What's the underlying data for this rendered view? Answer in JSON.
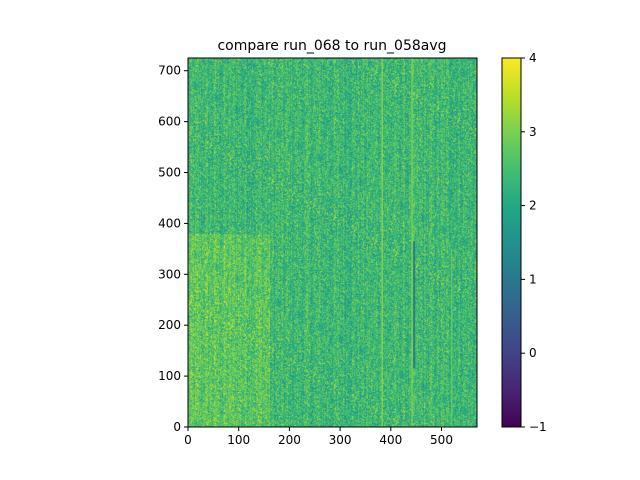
{
  "chart_data": {
    "type": "heatmap",
    "title": "compare run_068 to run_058avg",
    "xlabel": "",
    "ylabel": "",
    "xlim": [
      0,
      570
    ],
    "ylim": [
      0,
      725
    ],
    "x_ticks": [
      0,
      100,
      200,
      300,
      400,
      500
    ],
    "y_ticks": [
      0,
      100,
      200,
      300,
      400,
      500,
      600,
      700
    ],
    "colorbar": {
      "min": -1,
      "max": 4,
      "ticks": [
        -1,
        0,
        1,
        2,
        3,
        4
      ],
      "tick_labels": [
        "−1",
        "0",
        "1",
        "2",
        "3",
        "4"
      ],
      "colormap": "viridis"
    },
    "value_distribution": {
      "typical_range": [
        1.6,
        3.2
      ],
      "mean": 2.35,
      "brighter_region_x": [
        0,
        160
      ],
      "brighter_region_y": [
        0,
        380
      ]
    },
    "streaks": [
      {
        "x": 383,
        "y_range": [
          0,
          725
        ],
        "value": 3.2,
        "kind": "bright"
      },
      {
        "x": 442,
        "y_range": [
          0,
          725
        ],
        "value": 3.0,
        "kind": "bright"
      },
      {
        "x": 446,
        "y_range": [
          115,
          365
        ],
        "value": 0.9,
        "kind": "dark"
      },
      {
        "x": 520,
        "y_range": [
          0,
          350
        ],
        "value": 2.9,
        "kind": "bright"
      }
    ]
  }
}
